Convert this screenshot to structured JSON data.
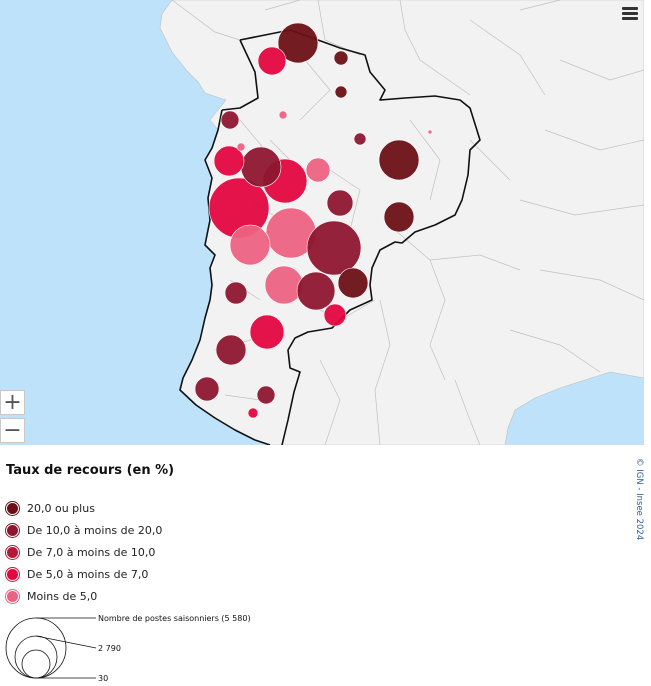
{
  "map": {
    "menu_icon": "hamburger-menu-icon",
    "zoom_in_label": "+",
    "zoom_out_label": "−",
    "credit": "© IGN - Insee 2024",
    "colors": {
      "sea": "#bde2fa",
      "land": "#f2f2f2",
      "department_border": "#c0c0c0",
      "region_border": "#111111"
    }
  },
  "legend": {
    "title": "Taux de recours (en %)",
    "classes": [
      {
        "label": "20,0 ou plus",
        "color": "#6b1016"
      },
      {
        "label": "De 10,0 à moins de 20,0",
        "color": "#8e1630"
      },
      {
        "label": "De 7,0 à moins de 10,0",
        "color": "#b31a3a"
      },
      {
        "label": "De 5,0 à moins de 7,0",
        "color": "#e3063f"
      },
      {
        "label": "Moins de 5,0",
        "color": "#ec6282"
      }
    ]
  },
  "size_legend": {
    "title": "Nombre de postes saisonniers (5 580)",
    "max_value": 5580,
    "mid_label": "2 790",
    "min_label": "30",
    "mid_value": 2790,
    "min_value": 30
  }
}
